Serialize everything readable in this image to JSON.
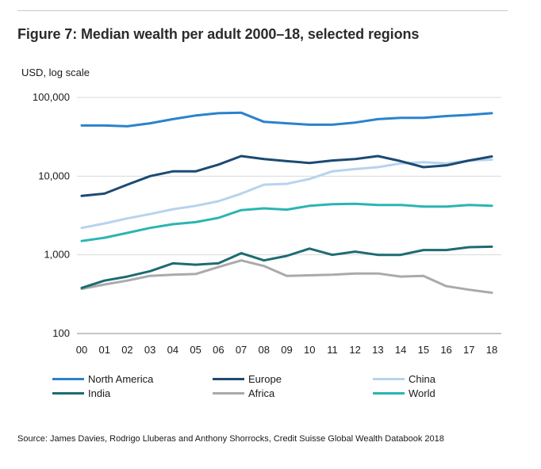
{
  "title": "Figure 7: Median wealth per adult 2000–18, selected regions",
  "source": "Source: James Davies, Rodrigo Lluberas and Anthony Shorrocks, Credit Suisse Global Wealth Databook 2018",
  "chart_data": {
    "type": "line",
    "title": "Figure 7: Median wealth per adult 2000–18, selected regions",
    "ylabel": "USD, log scale",
    "xlabel": "",
    "yscale": "log",
    "ylim": [
      100,
      100000
    ],
    "yticks": [
      100,
      1000,
      10000,
      100000
    ],
    "ytick_labels": [
      "100",
      "1,000",
      "10,000",
      "100,000"
    ],
    "categories": [
      "00",
      "01",
      "02",
      "03",
      "04",
      "05",
      "06",
      "07",
      "08",
      "09",
      "10",
      "11",
      "12",
      "13",
      "14",
      "15",
      "16",
      "17",
      "18"
    ],
    "legend_position": "bottom",
    "grid": "horizontal",
    "series": [
      {
        "name": "North America",
        "color": "#2b82cd",
        "values": [
          44000,
          44000,
          43000,
          47000,
          53000,
          59000,
          63000,
          64000,
          49000,
          47000,
          45000,
          45000,
          48000,
          53000,
          55000,
          55000,
          58000,
          60000,
          63000
        ]
      },
      {
        "name": "Europe",
        "color": "#1c4a72",
        "values": [
          5600,
          6000,
          7800,
          10000,
          11500,
          11500,
          14000,
          18000,
          16500,
          15500,
          14700,
          15800,
          16500,
          18000,
          15500,
          13000,
          13700,
          15800,
          17800
        ]
      },
      {
        "name": "China",
        "color": "#b7d3ee",
        "values": [
          2200,
          2500,
          2900,
          3300,
          3800,
          4200,
          4800,
          6000,
          7800,
          8000,
          9200,
          11500,
          12300,
          13000,
          14500,
          15000,
          14500,
          15800,
          16200
        ]
      },
      {
        "name": "India",
        "color": "#1e6b73",
        "values": [
          380,
          470,
          530,
          620,
          780,
          750,
          780,
          1050,
          850,
          970,
          1200,
          1000,
          1100,
          1000,
          1000,
          1150,
          1150,
          1250,
          1270
        ]
      },
      {
        "name": "Africa",
        "color": "#aaaaaa",
        "values": [
          370,
          420,
          470,
          540,
          560,
          570,
          700,
          850,
          720,
          540,
          550,
          560,
          580,
          580,
          530,
          540,
          400,
          360,
          330
        ]
      },
      {
        "name": "World",
        "color": "#2bb5b2",
        "values": [
          1500,
          1650,
          1900,
          2200,
          2450,
          2600,
          2950,
          3700,
          3900,
          3750,
          4200,
          4400,
          4450,
          4300,
          4300,
          4100,
          4100,
          4300,
          4200
        ]
      }
    ]
  }
}
